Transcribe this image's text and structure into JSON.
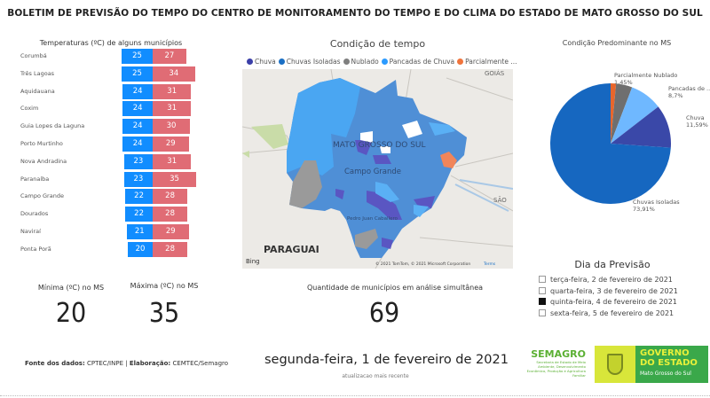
{
  "header": {
    "title": "BOLETIM DE PREVISÃO DO TEMPO DO CENTRO DE MONITORAMENTO DO TEMPO E DO CLIMA DO ESTADO DE MATO GROSSO DO SUL"
  },
  "temps": {
    "title": "Temperaturas (ºC) de alguns municípios",
    "min_color": "#118dff",
    "max_color": "#e06c75",
    "rows": [
      {
        "city": "Corumbá",
        "min": 25,
        "max": 27
      },
      {
        "city": "Três Lagoas",
        "min": 25,
        "max": 34
      },
      {
        "city": "Aquidauana",
        "min": 24,
        "max": 31
      },
      {
        "city": "Coxim",
        "min": 24,
        "max": 31
      },
      {
        "city": "Guia Lopes da Laguna",
        "min": 24,
        "max": 30
      },
      {
        "city": "Porto Murtinho",
        "min": 24,
        "max": 29
      },
      {
        "city": "Nova Andradina",
        "min": 23,
        "max": 31
      },
      {
        "city": "Paranaíba",
        "min": 23,
        "max": 35
      },
      {
        "city": "Campo Grande",
        "min": 22,
        "max": 28
      },
      {
        "city": "Dourados",
        "min": 22,
        "max": 28
      },
      {
        "city": "Naviraí",
        "min": 21,
        "max": 29
      },
      {
        "city": "Ponta Porã",
        "min": 20,
        "max": 28
      }
    ]
  },
  "map": {
    "title": "Condição de tempo",
    "legend": [
      {
        "label": "Chuva",
        "color": "#3b3fa8"
      },
      {
        "label": "Chuvas Isoladas",
        "color": "#1a6fc4"
      },
      {
        "label": "Nublado",
        "color": "#7f7f7f"
      },
      {
        "label": "Pancadas de Chuva",
        "color": "#2c9bff"
      },
      {
        "label": "Parcialmente ...",
        "color": "#f0743c"
      }
    ],
    "labels": {
      "state": "MATO GROSSO DO SUL",
      "city1": "Campo Grande",
      "city2": "Pedro Juan Caballero",
      "country": "PARAGUAI",
      "goias": "GOIÁS",
      "sao": "SÃO",
      "bing": "Bing",
      "copyright": "© 2021 TomTom, © 2021 Microsoft Corporation",
      "terms": "Terms"
    }
  },
  "pie": {
    "title": "Condição Predominante no MS",
    "slices": [
      {
        "label": "Parcialmente Nublado",
        "value": 1.45,
        "text": "1,45%",
        "color": "#e8662c"
      },
      {
        "label": "Nublado",
        "value": 4.35,
        "text": "",
        "color": "#6f6f6f"
      },
      {
        "label": "Pancadas de ...",
        "value": 8.7,
        "text": "8,7%",
        "color": "#6fb8ff"
      },
      {
        "label": "Chuva",
        "value": 11.59,
        "text": "11,59%",
        "color": "#3a48a8"
      },
      {
        "label": "Chuvas Isoladas",
        "value": 73.91,
        "text": "73,91%",
        "color": "#1667c0"
      }
    ]
  },
  "kpis": {
    "min_label": "Mínima (ºC) no MS",
    "min_value": "20",
    "max_label": "Máxima (ºC) no MS",
    "max_value": "35",
    "count_label": "Quantidade de municípios em análise simultânea",
    "count_value": "69"
  },
  "days": {
    "title": "Dia da Previsão",
    "options": [
      {
        "label": "terça-feira, 2 de fevereiro de 2021",
        "checked": false
      },
      {
        "label": "quarta-feira, 3 de fevereiro de 2021",
        "checked": false
      },
      {
        "label": "quinta-feira, 4 de fevereiro de 2021",
        "checked": true
      },
      {
        "label": "sexta-feira, 5 de fevereiro de 2021",
        "checked": false
      }
    ]
  },
  "footer": {
    "fonte_label": "Fonte dos dados:",
    "fonte": "CPTEC/INPE | ",
    "elab_label": "Elaboração:",
    "elab": "CEMTEC/Semagro",
    "date": "segunda-feira, 1 de fevereiro de 2021",
    "updated": "atualizacao mais recente",
    "semagro": "SEMAGRO",
    "semagro_sub": "Secretaria de Estado de Meio Ambiente, Desenvolvimento Econômico, Produção e Agricultura Familiar",
    "gov1": "GOVERNO",
    "gov2": "DO ESTADO",
    "gov3": "Mato Grosso do Sul"
  }
}
